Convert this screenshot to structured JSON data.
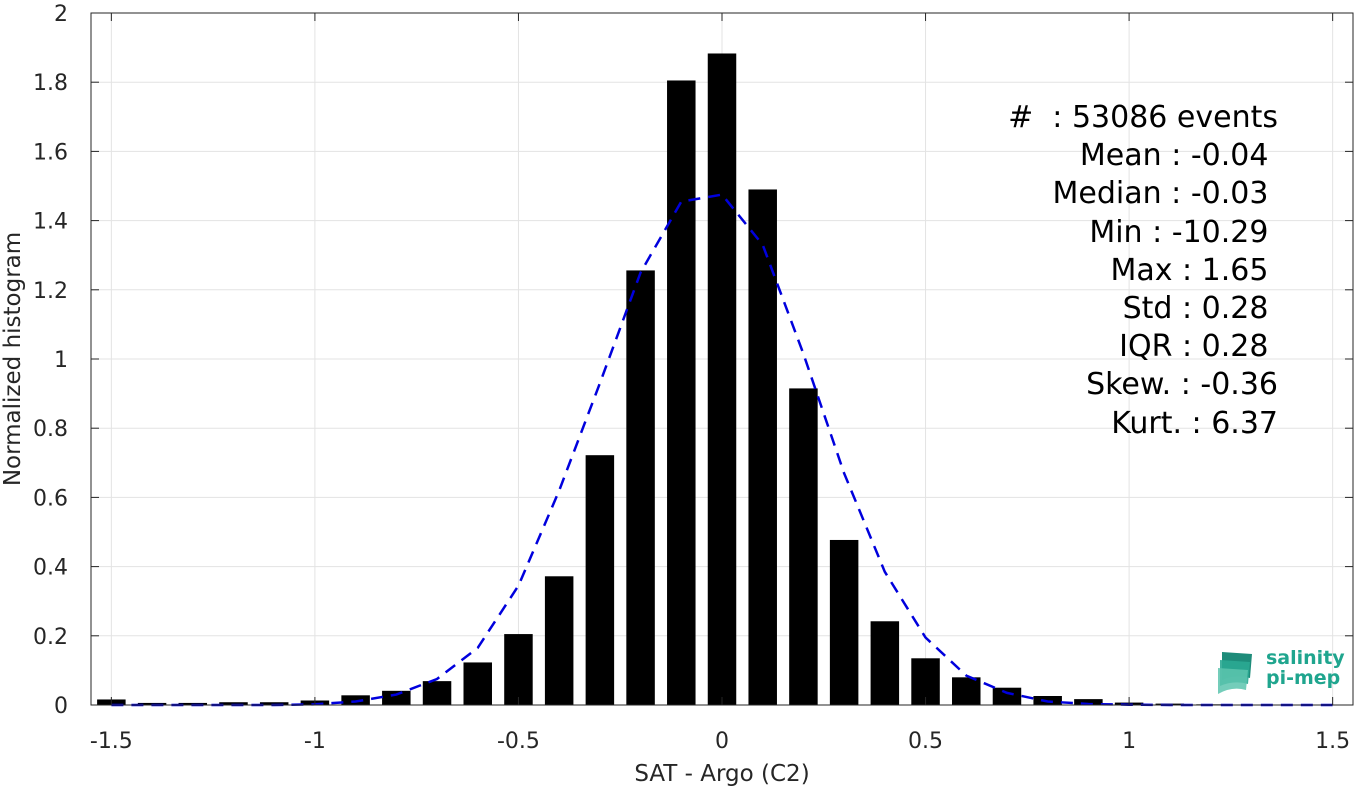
{
  "chart_data": {
    "type": "bar",
    "xlabel": "SAT - Argo (C2)",
    "ylabel": "Normalized histogram",
    "xlim": [
      -1.55,
      1.55
    ],
    "ylim": [
      0,
      2
    ],
    "xticks": [
      -1.5,
      -1,
      -0.5,
      0,
      0.5,
      1,
      1.5
    ],
    "xtick_labels": [
      "-1.5",
      "-1",
      "-0.5",
      "0",
      "0.5",
      "1",
      "1.5"
    ],
    "yticks": [
      0,
      0.2,
      0.4,
      0.6,
      0.8,
      1,
      1.2,
      1.4,
      1.6,
      1.8,
      2
    ],
    "ytick_labels": [
      "0",
      "0.2",
      "0.4",
      "0.6",
      "0.8",
      "1",
      "1.2",
      "1.4",
      "1.6",
      "1.8",
      "2"
    ],
    "grid": true,
    "bar_color": "#000000",
    "bar_width": 0.07,
    "bars": {
      "x": [
        -1.5,
        -1.4,
        -1.3,
        -1.2,
        -1.1,
        -1.0,
        -0.9,
        -0.8,
        -0.7,
        -0.6,
        -0.5,
        -0.4,
        -0.3,
        -0.2,
        -0.1,
        0.0,
        0.1,
        0.2,
        0.3,
        0.4,
        0.5,
        0.6,
        0.7,
        0.8,
        0.9,
        1.0,
        1.1,
        1.2,
        1.3,
        1.4,
        1.5
      ],
      "values": [
        0.016,
        0.006,
        0.006,
        0.008,
        0.008,
        0.013,
        0.028,
        0.041,
        0.069,
        0.123,
        0.205,
        0.372,
        0.722,
        1.256,
        1.805,
        1.883,
        1.49,
        0.915,
        0.477,
        0.242,
        0.135,
        0.08,
        0.05,
        0.026,
        0.017,
        0.007,
        0.004,
        0.002,
        0.001,
        0.001,
        0.001
      ]
    },
    "fit_curve": {
      "style": "dashed",
      "color": "#0000dd",
      "x": [
        -1.5,
        -1.4,
        -1.3,
        -1.2,
        -1.1,
        -1.0,
        -0.9,
        -0.8,
        -0.7,
        -0.6,
        -0.5,
        -0.4,
        -0.3,
        -0.2,
        -0.1,
        0.0,
        0.1,
        0.2,
        0.3,
        0.4,
        0.5,
        0.6,
        0.7,
        0.8,
        0.9,
        1.0,
        1.1,
        1.2,
        1.3,
        1.4,
        1.5
      ],
      "y": [
        0.0,
        0.0,
        0.0,
        0.0,
        0.0,
        0.002,
        0.01,
        0.03,
        0.075,
        0.165,
        0.345,
        0.62,
        0.93,
        1.25,
        1.455,
        1.475,
        1.33,
        1.015,
        0.67,
        0.385,
        0.195,
        0.085,
        0.035,
        0.01,
        0.003,
        0.001,
        0.0,
        0.0,
        0.0,
        0.0,
        0.0
      ]
    }
  },
  "stats": [
    "#  : 53086 events",
    "Mean : -0.04 ",
    "Median : -0.03 ",
    "Min : -10.29 ",
    "Max : 1.65 ",
    "Std : 0.28 ",
    "IQR : 0.28 ",
    "Skew. : -0.36",
    "Kurt. : 6.37"
  ],
  "logo": {
    "line1": "salinity",
    "line2": "pi-mep",
    "color": "#1fa58e"
  }
}
